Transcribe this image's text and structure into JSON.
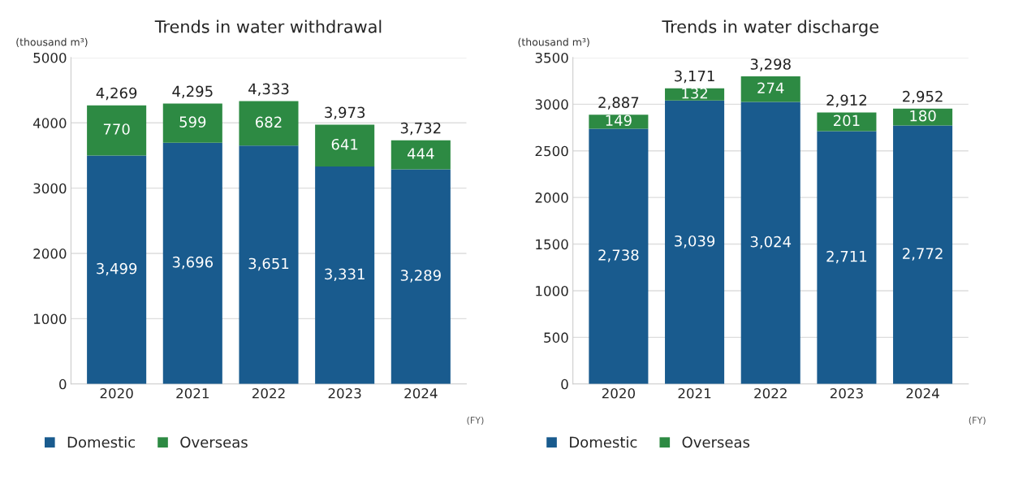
{
  "chart_data": [
    {
      "type": "bar",
      "stacked": true,
      "title": "Trends in water withdrawal",
      "ylabel": "(thousand m³)",
      "xlabel": "(FY)",
      "categories": [
        "2020",
        "2021",
        "2022",
        "2023",
        "2024"
      ],
      "ylim": [
        0,
        5000
      ],
      "yticks": [
        0,
        1000,
        2000,
        3000,
        4000,
        5000
      ],
      "grid": "y",
      "legend": "bottom left",
      "series": [
        {
          "name": "Domestic",
          "color": "#195b8e",
          "values": [
            3499,
            3696,
            3651,
            3331,
            3289
          ],
          "value_labels": [
            "3,499",
            "3,696",
            "3,651",
            "3,331",
            "3,289"
          ]
        },
        {
          "name": "Overseas",
          "color": "#2d8a43",
          "values": [
            770,
            599,
            682,
            641,
            444
          ],
          "value_labels": [
            "770",
            "599",
            "682",
            "641",
            "444"
          ]
        }
      ],
      "totals": [
        "4,269",
        "4,295",
        "4,333",
        "3,973",
        "3,732"
      ]
    },
    {
      "type": "bar",
      "stacked": true,
      "title": "Trends in water discharge",
      "ylabel": "(thousand m³)",
      "xlabel": "(FY)",
      "categories": [
        "2020",
        "2021",
        "2022",
        "2023",
        "2024"
      ],
      "ylim": [
        0,
        3500
      ],
      "yticks": [
        0,
        500,
        1000,
        1500,
        2000,
        2500,
        3000,
        3500
      ],
      "grid": "y",
      "legend": "bottom left",
      "series": [
        {
          "name": "Domestic",
          "color": "#195b8e",
          "values": [
            2738,
            3039,
            3024,
            2711,
            2772
          ],
          "value_labels": [
            "2,738",
            "3,039",
            "3,024",
            "2,711",
            "2,772"
          ]
        },
        {
          "name": "Overseas",
          "color": "#2d8a43",
          "values": [
            149,
            132,
            274,
            201,
            180
          ],
          "value_labels": [
            "149",
            "132",
            "274",
            "201",
            "180"
          ]
        }
      ],
      "totals": [
        "2,887",
        "3,171",
        "3,298",
        "2,912",
        "2,952"
      ]
    }
  ]
}
